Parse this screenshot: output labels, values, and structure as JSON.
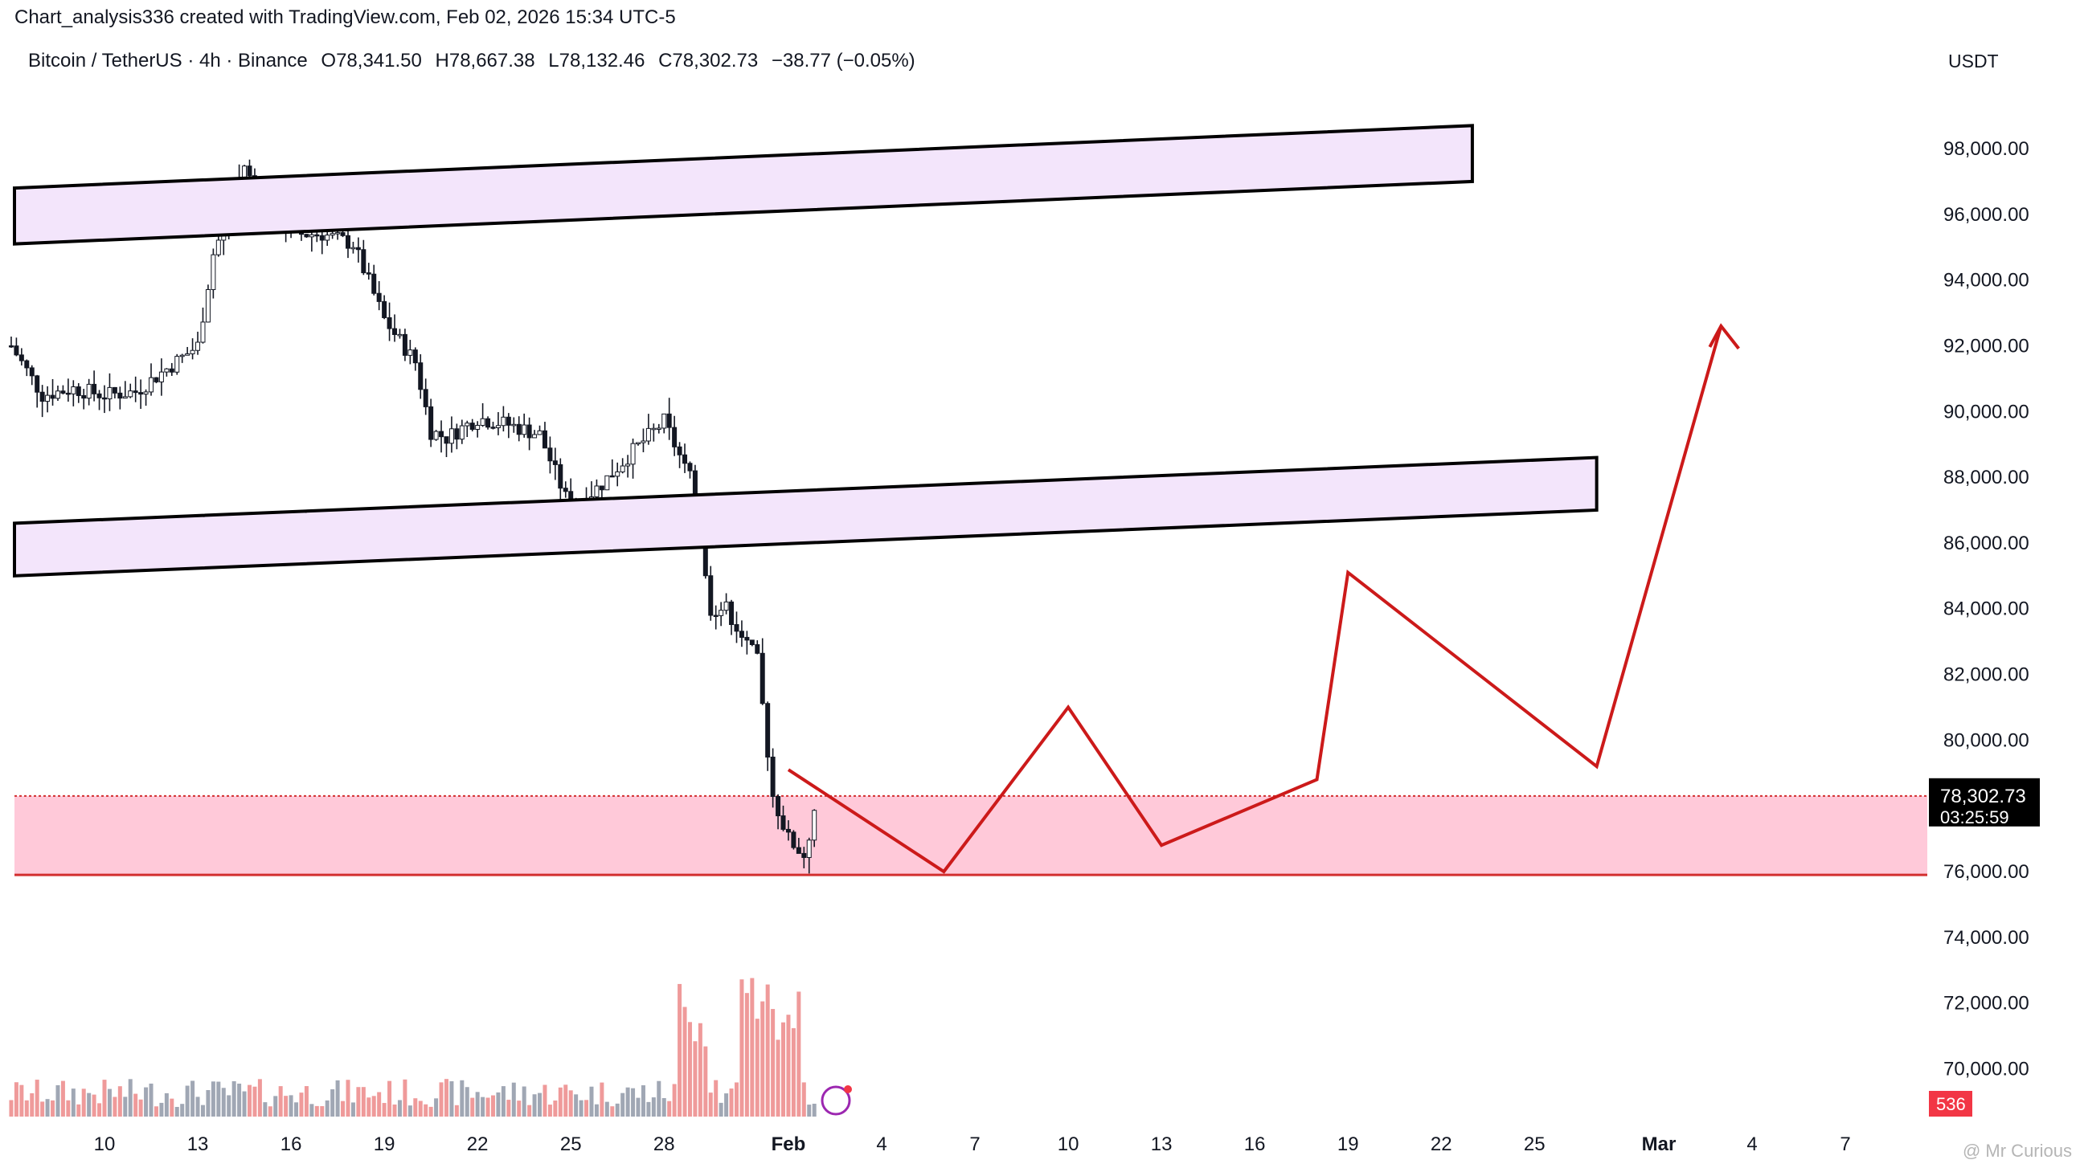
{
  "header": {
    "credit": "Chart_analysis336 created with TradingView.com, Feb 02, 2026 15:34 UTC-5"
  },
  "symbol_bar": {
    "symbol": "Bitcoin / TetherUS · 4h · Binance",
    "open": "O78,341.50",
    "high": "H78,667.38",
    "low": "L78,132.46",
    "close": "C78,302.73",
    "change": "−38.77 (−0.05%)"
  },
  "price_axis": {
    "currency": "USDT",
    "ticks": [
      "98,000.00",
      "96,000.00",
      "94,000.00",
      "92,000.00",
      "90,000.00",
      "88,000.00",
      "86,000.00",
      "84,000.00",
      "82,000.00",
      "80,000.00",
      "76,000.00",
      "74,000.00",
      "72,000.00",
      "70,000.00"
    ],
    "current_price": "78,302.73",
    "countdown": "03:25:59",
    "volume_badge": "536"
  },
  "time_axis": {
    "labels": [
      "10",
      "13",
      "16",
      "19",
      "22",
      "25",
      "28",
      "Feb",
      "4",
      "7",
      "10",
      "13",
      "16",
      "19",
      "22",
      "25",
      "Mar",
      "4",
      "7"
    ]
  },
  "watermark": "@ Mr Curious",
  "colors": {
    "up": "#131722",
    "down": "#131722",
    "vol_up": "#a0a7b4",
    "vol_down": "#ef9a9a",
    "channel_fill": "#f3e5fb",
    "zone_fill": "#ffc9d9",
    "zone_line": "#d32f2f",
    "projection": "#cc1a1a",
    "price_tag": "#000000"
  },
  "chart_data": {
    "type": "candlestick",
    "title": "Bitcoin / TetherUS · 4h · Binance",
    "ylim": [
      68000,
      101000
    ],
    "y_axis_unit": "USDT",
    "x_unit": "day",
    "x_range": [
      "Jan 07 2026",
      "Mar 09 2026"
    ],
    "price_path": [
      {
        "date": "Jan 07",
        "price": 92000
      },
      {
        "date": "Jan 08",
        "price": 90500
      },
      {
        "date": "Jan 09",
        "price": 90700
      },
      {
        "date": "Jan 10",
        "price": 90500
      },
      {
        "date": "Jan 11",
        "price": 90600
      },
      {
        "date": "Jan 12",
        "price": 91300
      },
      {
        "date": "Jan 13",
        "price": 92000
      },
      {
        "date": "Jan 13.5",
        "price": 94800
      },
      {
        "date": "Jan 14",
        "price": 96000
      },
      {
        "date": "Jan 14.5",
        "price": 97500
      },
      {
        "date": "Jan 15",
        "price": 96300
      },
      {
        "date": "Jan 16",
        "price": 95400
      },
      {
        "date": "Jan 17",
        "price": 95400
      },
      {
        "date": "Jan 18",
        "price": 95100
      },
      {
        "date": "Jan 19",
        "price": 92800
      },
      {
        "date": "Jan 20",
        "price": 91500
      },
      {
        "date": "Jan 20.5",
        "price": 89400
      },
      {
        "date": "Jan 21",
        "price": 89200
      },
      {
        "date": "Jan 22",
        "price": 89800
      },
      {
        "date": "Jan 23",
        "price": 89600
      },
      {
        "date": "Jan 24",
        "price": 89300
      },
      {
        "date": "Jan 25",
        "price": 87000
      },
      {
        "date": "Jan 26",
        "price": 87800
      },
      {
        "date": "Jan 27",
        "price": 88800
      },
      {
        "date": "Jan 28",
        "price": 89700
      },
      {
        "date": "Jan 29",
        "price": 87600
      },
      {
        "date": "Jan 29.5",
        "price": 84000
      },
      {
        "date": "Jan 30",
        "price": 84000
      },
      {
        "date": "Jan 31",
        "price": 82400
      },
      {
        "date": "Jan 31.5",
        "price": 78300
      },
      {
        "date": "Feb 01",
        "price": 77000
      },
      {
        "date": "Feb 01.5",
        "price": 76500
      },
      {
        "date": "Feb 02",
        "price": 78300
      }
    ],
    "volume_spikes": [
      "Jan 29",
      "Jan 31",
      "Feb 01"
    ],
    "current_price": 78302.73,
    "annotations": [
      {
        "type": "rising_channel",
        "from": {
          "date": "Jan 07",
          "low": 95100,
          "high": 96800
        },
        "to": {
          "date": "Feb 23",
          "low": 97000,
          "high": 98700
        }
      },
      {
        "type": "rising_channel",
        "from": {
          "date": "Jan 07",
          "low": 85000,
          "high": 86600
        },
        "to": {
          "date": "Feb 27",
          "low": 87000,
          "high": 88600
        }
      },
      {
        "type": "horizontal_zone",
        "low": 75900,
        "high": 78300
      },
      {
        "type": "projection_path",
        "points": [
          {
            "date": "Feb 01",
            "price": 79100
          },
          {
            "date": "Feb 06",
            "price": 76000
          },
          {
            "date": "Feb 10",
            "price": 81000
          },
          {
            "date": "Feb 13",
            "price": 76800
          },
          {
            "date": "Feb 18",
            "price": 78800
          },
          {
            "date": "Feb 19",
            "price": 85100
          },
          {
            "date": "Feb 27",
            "price": 79200
          },
          {
            "date": "Mar 03",
            "price": 92600
          }
        ]
      }
    ]
  }
}
